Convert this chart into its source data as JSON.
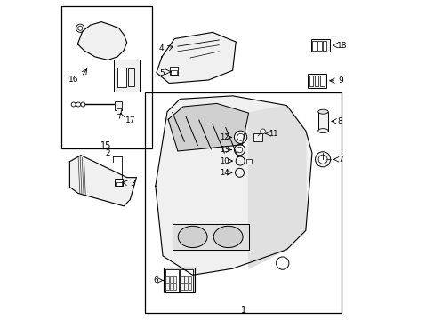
{
  "background_color": "#ffffff",
  "line_color": "#000000",
  "light_fill": "#f0f0f0",
  "mid_fill": "#e0e0e0",
  "dark_fill": "#d0d0d0"
}
